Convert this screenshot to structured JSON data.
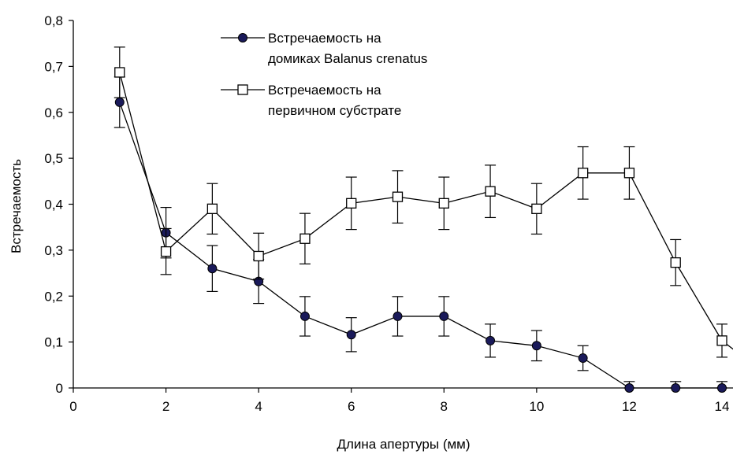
{
  "chart_data": {
    "type": "line",
    "xlabel": "Длина апертуры (мм)",
    "ylabel": "Встречаемость",
    "xlim": [
      0,
      14
    ],
    "ylim": [
      0,
      0.8
    ],
    "x_ticks": [
      "0",
      "2",
      "4",
      "6",
      "8",
      "10",
      "12",
      "14"
    ],
    "y_ticks": [
      "0",
      "0,1",
      "0,2",
      "0,3",
      "0,4",
      "0,5",
      "0,6",
      "0,7",
      "0,8"
    ],
    "grid": false,
    "legend_position": "top-center",
    "series": [
      {
        "name_lines": [
          "Встречаемость на",
          "домиках Balanus crenatus"
        ],
        "marker": "filled-circle",
        "marker_color": "#1a1a5a",
        "line_color": "#000000",
        "points": [
          {
            "x": 1,
            "y": 0.622,
            "err": 0.055
          },
          {
            "x": 2,
            "y": 0.338,
            "err": 0.055
          },
          {
            "x": 3,
            "y": 0.26,
            "err": 0.05
          },
          {
            "x": 4,
            "y": 0.232,
            "err": 0.048
          },
          {
            "x": 5,
            "y": 0.156,
            "err": 0.043
          },
          {
            "x": 6,
            "y": 0.116,
            "err": 0.037
          },
          {
            "x": 7,
            "y": 0.156,
            "err": 0.043
          },
          {
            "x": 8,
            "y": 0.156,
            "err": 0.043
          },
          {
            "x": 9,
            "y": 0.103,
            "err": 0.036
          },
          {
            "x": 10,
            "y": 0.092,
            "err": 0.033
          },
          {
            "x": 11,
            "y": 0.065,
            "err": 0.027
          },
          {
            "x": 12,
            "y": 0.0,
            "err": 0.014
          },
          {
            "x": 13,
            "y": 0.0,
            "err": 0.014
          },
          {
            "x": 14,
            "y": 0.0,
            "err": 0.014
          }
        ]
      },
      {
        "name_lines": [
          "Встречаемость на",
          "первичном субстрате"
        ],
        "marker": "open-square",
        "marker_color": "#000000",
        "line_color": "#000000",
        "points": [
          {
            "x": 1,
            "y": 0.687,
            "err": 0.055
          },
          {
            "x": 2,
            "y": 0.297,
            "err": 0.05
          },
          {
            "x": 3,
            "y": 0.39,
            "err": 0.055
          },
          {
            "x": 4,
            "y": 0.287,
            "err": 0.05
          },
          {
            "x": 5,
            "y": 0.325,
            "err": 0.055
          },
          {
            "x": 6,
            "y": 0.402,
            "err": 0.057
          },
          {
            "x": 7,
            "y": 0.416,
            "err": 0.057
          },
          {
            "x": 8,
            "y": 0.402,
            "err": 0.057
          },
          {
            "x": 9,
            "y": 0.428,
            "err": 0.057
          },
          {
            "x": 10,
            "y": 0.39,
            "err": 0.055
          },
          {
            "x": 11,
            "y": 0.468,
            "err": 0.057
          },
          {
            "x": 12,
            "y": 0.468,
            "err": 0.057
          },
          {
            "x": 13,
            "y": 0.273,
            "err": 0.05
          },
          {
            "x": 14,
            "y": 0.103,
            "err": 0.036
          },
          {
            "x": 14.3,
            "y": 0.08,
            "err": null
          }
        ]
      }
    ]
  }
}
